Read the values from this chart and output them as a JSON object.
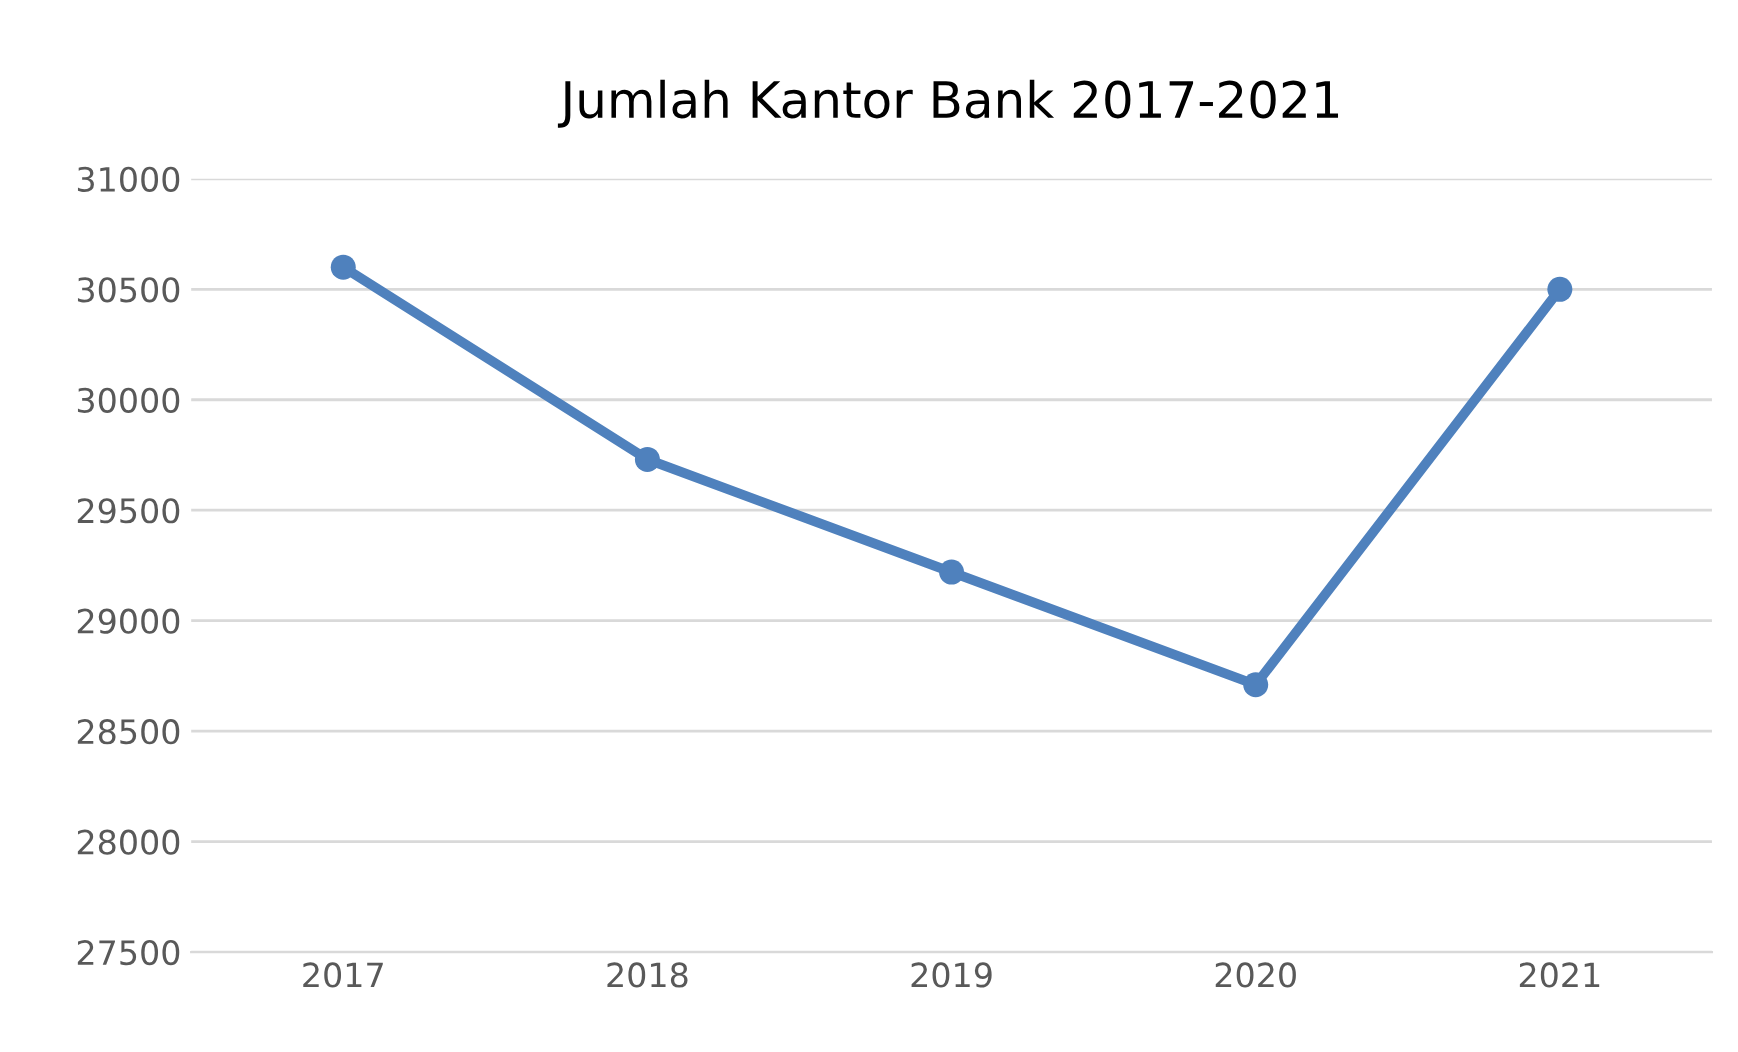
{
  "chart_data": {
    "type": "line",
    "title": "Jumlah Kantor Bank 2017-2021",
    "categories": [
      "2017",
      "2018",
      "2019",
      "2020",
      "2021"
    ],
    "series": [
      {
        "color": "#4f81bd",
        "values": [
          30600,
          29730,
          29220,
          28710,
          30500
        ]
      }
    ],
    "ylim": [
      27500,
      31000
    ],
    "yticks": [
      27500,
      28000,
      28500,
      29000,
      29500,
      30000,
      30500,
      31000
    ],
    "grid": "y",
    "marker": "circle",
    "line_style": "solid"
  }
}
